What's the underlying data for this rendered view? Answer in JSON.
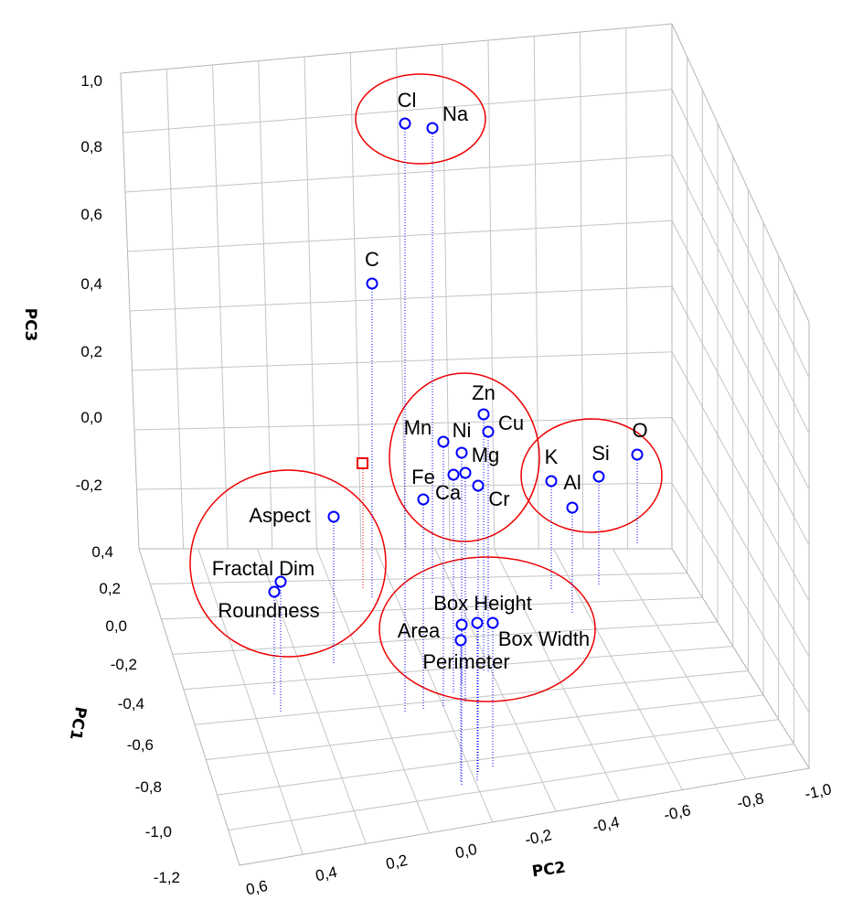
{
  "chart_data": {
    "type": "scatter",
    "projection": "3d",
    "xlabel": "PC1",
    "ylabel": "PC2",
    "zlabel": "PC3",
    "xlim": [
      -1.2,
      0.4
    ],
    "ylim": [
      -1.0,
      0.6
    ],
    "zlim": [
      -0.4,
      1.0
    ],
    "x_ticks": [
      "0,4",
      "0,2",
      "0,0",
      "-0,2",
      "-0,4",
      "-0,6",
      "-0,8",
      "-1,0",
      "-1,2"
    ],
    "y_ticks": [
      "0,6",
      "0,4",
      "0,2",
      "0,0",
      "-0,2",
      "-0,4",
      "-0,6",
      "-0,8",
      "-1,0"
    ],
    "z_ticks": [
      "1,0",
      "0,8",
      "0,6",
      "0,4",
      "0,2",
      "0,0",
      "-0,2"
    ],
    "decimal_separator": ",",
    "grid": true,
    "point_color": "#0000ff",
    "drop_line_color": "#0000ff",
    "cluster_color": "#ee0000",
    "points": [
      {
        "label": "Cl",
        "pc1": 0.05,
        "pc2": 0.15,
        "pc3": 0.85
      },
      {
        "label": "Na",
        "pc1": 0.0,
        "pc2": 0.05,
        "pc3": 0.85
      },
      {
        "label": "C",
        "pc1": 0.25,
        "pc2": 0.18,
        "pc3": 0.39
      },
      {
        "label": "Zn",
        "pc1": -0.1,
        "pc2": -0.08,
        "pc3": 0.0
      },
      {
        "label": "Mn",
        "pc1": -0.05,
        "pc2": 0.05,
        "pc3": -0.08
      },
      {
        "label": "Ni",
        "pc1": -0.1,
        "pc2": 0.0,
        "pc3": -0.1
      },
      {
        "label": "Cu",
        "pc1": -0.15,
        "pc2": -0.1,
        "pc3": -0.05
      },
      {
        "label": "Mg",
        "pc1": -0.1,
        "pc2": -0.05,
        "pc3": -0.13
      },
      {
        "label": "Fe",
        "pc1": -0.12,
        "pc2": 0.05,
        "pc3": -0.18
      },
      {
        "label": "Ca",
        "pc1": -0.05,
        "pc2": 0.1,
        "pc3": -0.25
      },
      {
        "label": "Cr",
        "pc1": -0.2,
        "pc2": -0.1,
        "pc3": -0.21
      },
      {
        "label": "K",
        "pc1": -0.2,
        "pc2": -0.35,
        "pc3": -0.18
      },
      {
        "label": "Al",
        "pc1": -0.35,
        "pc2": -0.4,
        "pc3": -0.25
      },
      {
        "label": "Si",
        "pc1": -0.25,
        "pc2": -0.55,
        "pc3": -0.12
      },
      {
        "label": "O",
        "pc1": -0.15,
        "pc2": -0.75,
        "pc3": -0.05
      },
      {
        "label": "Aspect",
        "pc1": -0.1,
        "pc2": 0.55,
        "pc3": -0.3
      },
      {
        "label": "Fractal Dim",
        "pc1": -0.45,
        "pc2": 0.5,
        "pc3": -0.05
      },
      {
        "label": "Roundness",
        "pc1": -0.4,
        "pc2": 0.48,
        "pc3": -0.07
      },
      {
        "label": "Box Height",
        "pc1": -0.55,
        "pc2": 0.05,
        "pc3": -0.05
      },
      {
        "label": "Area",
        "pc1": -0.6,
        "pc2": 0.05,
        "pc3": -0.05
      },
      {
        "label": "Box Width",
        "pc1": -0.6,
        "pc2": -0.05,
        "pc3": -0.05
      },
      {
        "label": "Perimeter",
        "pc1": -0.65,
        "pc2": 0.05,
        "pc3": -0.1
      }
    ],
    "extra_marker": {
      "shape": "square",
      "color": "#ee0000",
      "pc1": 0.1,
      "pc2": 0.3,
      "pc3": -0.15
    },
    "clusters": [
      {
        "name": "cluster-cl-na",
        "members": [
          "Cl",
          "Na"
        ]
      },
      {
        "name": "cluster-metals",
        "members": [
          "Zn",
          "Mn",
          "Ni",
          "Cu",
          "Mg",
          "Fe",
          "Ca",
          "Cr"
        ]
      },
      {
        "name": "cluster-k-al-si-o",
        "members": [
          "K",
          "Al",
          "Si",
          "O"
        ]
      },
      {
        "name": "cluster-shape",
        "members": [
          "Aspect",
          "Fractal Dim",
          "Roundness"
        ]
      },
      {
        "name": "cluster-size",
        "members": [
          "Box Height",
          "Area",
          "Box Width",
          "Perimeter"
        ]
      }
    ]
  }
}
